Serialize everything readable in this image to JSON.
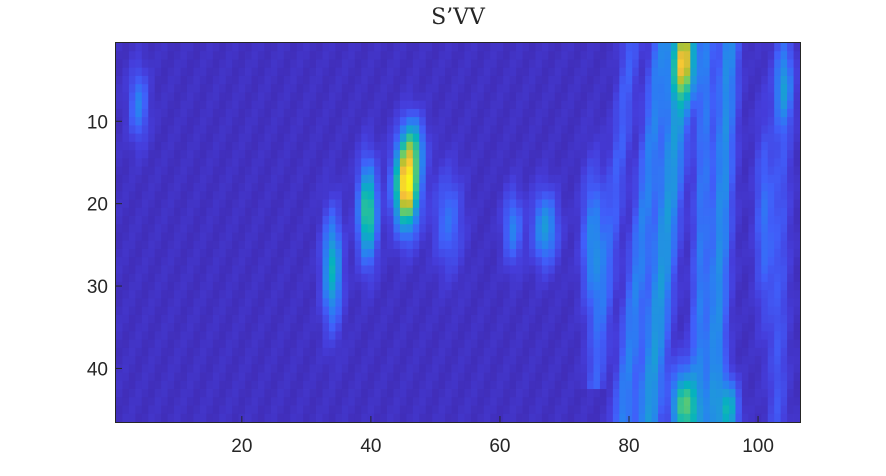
{
  "chart_data": {
    "type": "heatmap",
    "title": "S’VV",
    "xlabel": "",
    "ylabel": "",
    "x_range": [
      0.5,
      106.5
    ],
    "y_range": [
      0.5,
      46.5
    ],
    "y_reversed": true,
    "x_ticks": [
      20,
      40,
      60,
      80,
      100
    ],
    "y_ticks": [
      10,
      20,
      30,
      40
    ],
    "colormap": "parula",
    "background_value": 0.05,
    "features": [
      {
        "x": 45.5,
        "y": 18,
        "sx": 1.3,
        "sy": 3.5,
        "value": 0.95
      },
      {
        "x": 46.5,
        "y": 13,
        "sx": 1.2,
        "sy": 2.5,
        "value": 0.4
      },
      {
        "x": 39.5,
        "y": 21,
        "sx": 1.0,
        "sy": 4.0,
        "value": 0.6
      },
      {
        "x": 34,
        "y": 28,
        "sx": 1.0,
        "sy": 4.5,
        "value": 0.45
      },
      {
        "x": 88.5,
        "y": 3,
        "sx": 1.2,
        "sy": 3.0,
        "value": 0.55
      },
      {
        "x": 88.5,
        "y": 44.5,
        "sx": 1.3,
        "sy": 3.0,
        "value": 0.6
      },
      {
        "x": 95.5,
        "y": 45,
        "sx": 1.0,
        "sy": 2.5,
        "value": 0.45
      },
      {
        "x": 67,
        "y": 23,
        "sx": 1.3,
        "sy": 3.0,
        "value": 0.35
      },
      {
        "x": 62,
        "y": 23,
        "sx": 1.0,
        "sy": 3.0,
        "value": 0.25
      },
      {
        "x": 74.5,
        "y": 25,
        "sx": 1.2,
        "sy": 6.0,
        "value": 0.3
      },
      {
        "x": 52,
        "y": 22,
        "sx": 1.5,
        "sy": 4.0,
        "value": 0.2
      },
      {
        "x": 101,
        "y": 22,
        "sx": 1.0,
        "sy": 8.0,
        "value": 0.2
      },
      {
        "x": 104,
        "y": 6,
        "sx": 1.0,
        "sy": 3.0,
        "value": 0.25
      },
      {
        "x": 4,
        "y": 8,
        "sx": 1.0,
        "sy": 3.0,
        "value": 0.25
      }
    ],
    "ridges": [
      {
        "x0": 88.5,
        "x1": 83,
        "y0": 1,
        "y1": 46,
        "sx": 1.3,
        "value": 0.35
      },
      {
        "x0": 85,
        "x1": 79,
        "y0": 1,
        "y1": 46,
        "sx": 1.1,
        "value": 0.25
      },
      {
        "x0": 95.5,
        "x1": 93,
        "y0": 1,
        "y1": 46,
        "sx": 1.1,
        "value": 0.3
      },
      {
        "x0": 92,
        "x1": 90.5,
        "y0": 1,
        "y1": 46,
        "sx": 0.9,
        "value": 0.22
      },
      {
        "x0": 80,
        "x1": 75,
        "y0": 3,
        "y1": 40,
        "sx": 1.0,
        "value": 0.15
      },
      {
        "x0": 104,
        "x1": 103,
        "y0": 1,
        "y1": 46,
        "sx": 1.0,
        "value": 0.12
      }
    ]
  }
}
